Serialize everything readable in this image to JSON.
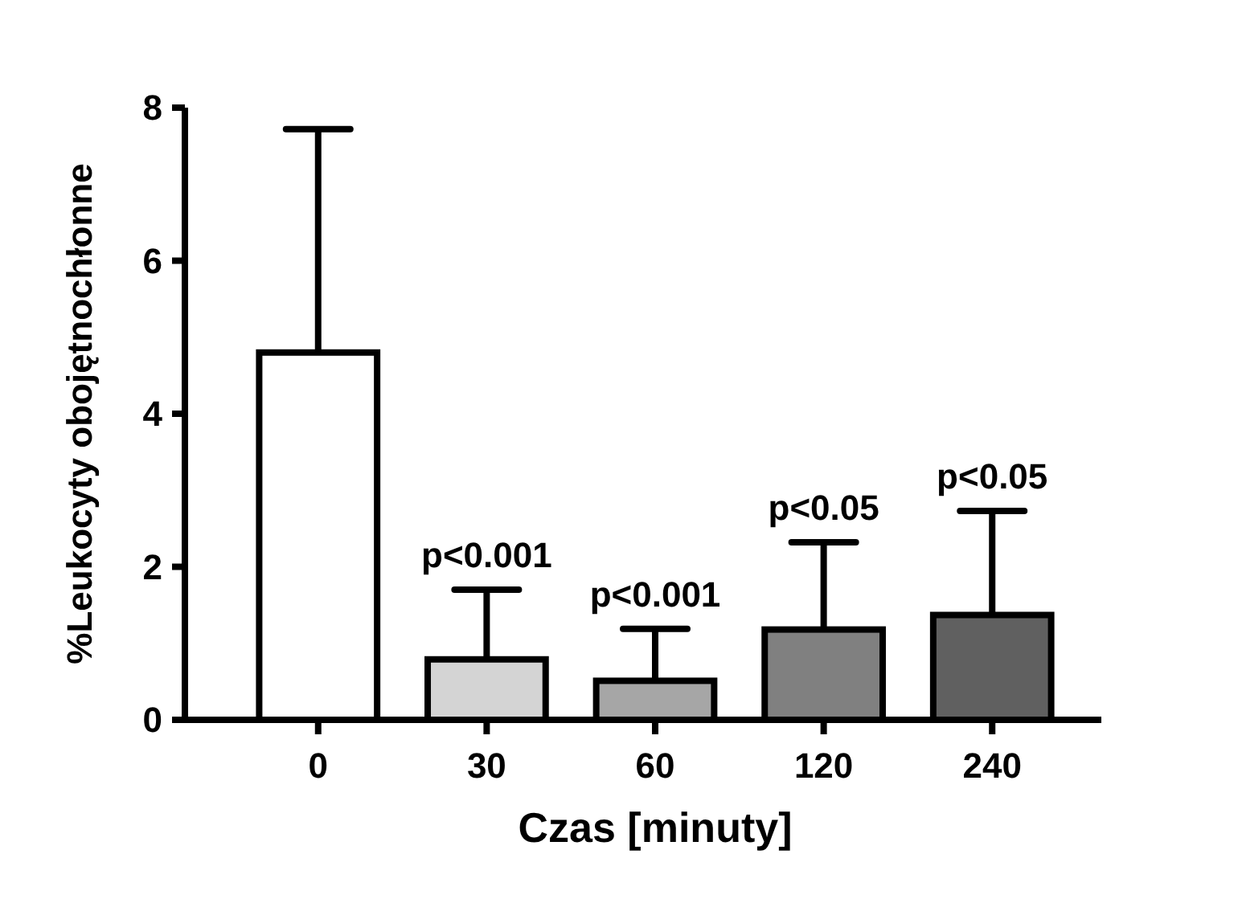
{
  "chart_data": {
    "type": "bar",
    "xlabel": "Czas [minuty]",
    "ylabel": "%Leukocyty obojętnochłonne",
    "categories": [
      "0",
      "30",
      "60",
      "120",
      "240"
    ],
    "values": [
      4.8,
      0.79,
      0.51,
      1.18,
      1.37
    ],
    "colors": [
      "#ffffff",
      "#d4d4d4",
      "#a6a6a6",
      "#808080",
      "#606060"
    ],
    "errors": [
      [
        4.8,
        7.72
      ],
      [
        0.79,
        1.7
      ],
      [
        0.51,
        1.19
      ],
      [
        1.18,
        2.32
      ],
      [
        1.37,
        2.73
      ]
    ],
    "ylim": [
      0,
      8
    ],
    "yticks": [
      0,
      2,
      4,
      6,
      8
    ],
    "grid": false,
    "annotations": [
      {
        "text": "p<0.001",
        "x": "30",
        "y": 1.7
      },
      {
        "text": "p<0.001",
        "x": "60",
        "y": 1.19
      },
      {
        "text": "p<0.05",
        "x": "120",
        "y": 2.32
      },
      {
        "text": "p<0.05",
        "x": "240",
        "y": 2.73
      }
    ]
  }
}
